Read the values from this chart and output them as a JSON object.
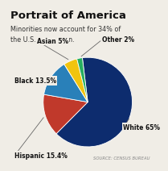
{
  "title": "Portrait of America",
  "subtitle": "Minorities now account for 34% of\nthe U.S. population.",
  "slices": [
    {
      "label": "White 65%",
      "value": 65.0,
      "color": "#0d2c6e"
    },
    {
      "label": "Hispanic 15.4%",
      "value": 15.4,
      "color": "#c0392b"
    },
    {
      "label": "Black 13.5%",
      "value": 13.5,
      "color": "#2980b9"
    },
    {
      "label": "Asian 5%",
      "value": 5.0,
      "color": "#f1c40f"
    },
    {
      "label": "Other 2%",
      "value": 2.0,
      "color": "#27ae60"
    }
  ],
  "source_text": "SOURCE: CENSUS BUREAU",
  "bg_color": "#f0ede6",
  "title_color": "#111111",
  "subtitle_color": "#333333",
  "source_color": "#888888",
  "startangle": 97
}
